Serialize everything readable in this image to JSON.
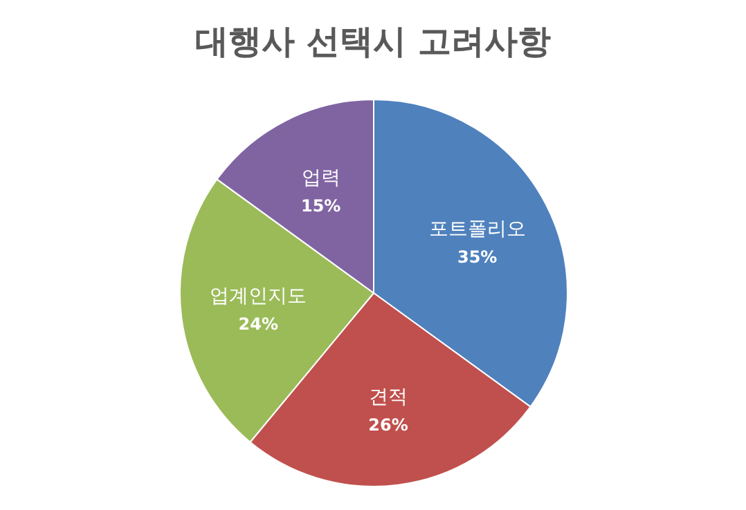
{
  "chart_data": {
    "type": "pie",
    "title": "대행사 선택시 고려사항",
    "categories": [
      "포트폴리오",
      "견적",
      "업계인지도",
      "업력"
    ],
    "values": [
      35,
      26,
      24,
      15
    ],
    "value_labels": [
      "35%",
      "26%",
      "24%",
      "15%"
    ],
    "colors": [
      "#4f81bd",
      "#c0504d",
      "#9bbb59",
      "#8064a2"
    ],
    "legend": false
  }
}
